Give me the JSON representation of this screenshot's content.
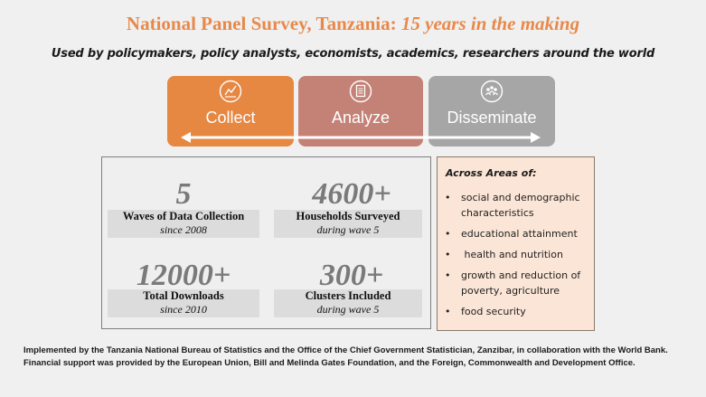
{
  "title": {
    "main": "National Panel Survey, Tanzania:",
    "emphasis": "15 years in the making"
  },
  "subtitle": "Used by policymakers, policy analysts, economists, academics, researchers around the world",
  "stages": [
    {
      "label": "Collect",
      "icon": "chart-icon"
    },
    {
      "label": "Analyze",
      "icon": "document-icon"
    },
    {
      "label": "Disseminate",
      "icon": "people-network-icon"
    }
  ],
  "stats": [
    {
      "number": "5",
      "label": "Waves of Data Collection",
      "sub": "since 2008"
    },
    {
      "number": "4600+",
      "label": "Households Surveyed",
      "sub": "during wave 5"
    },
    {
      "number": "12000+",
      "label": "Total Downloads",
      "sub": "since 2010"
    },
    {
      "number": "300+",
      "label": "Clusters Included",
      "sub": "during wave 5"
    }
  ],
  "areas": {
    "heading": "Across Areas of:",
    "items": [
      "social and demographic characteristics",
      "educational attainment",
      " health and nutrition",
      "growth and reduction of poverty, agriculture",
      "food security"
    ]
  },
  "footer": "Implemented by the Tanzania National Bureau of Statistics and the Office of the Chief Government Statistician, Zanzibar, in collaboration with the World Bank. Financial support was provided by the European Union, Bill and Melinda Gates Foundation, and the Foreign, Commonwealth and Development Office.",
  "colors": {
    "accent": "#e8894a",
    "collect": "#e68742",
    "analyze": "#c48276",
    "disseminate": "#a6a6a6",
    "areas_bg": "#fbe5d6"
  }
}
